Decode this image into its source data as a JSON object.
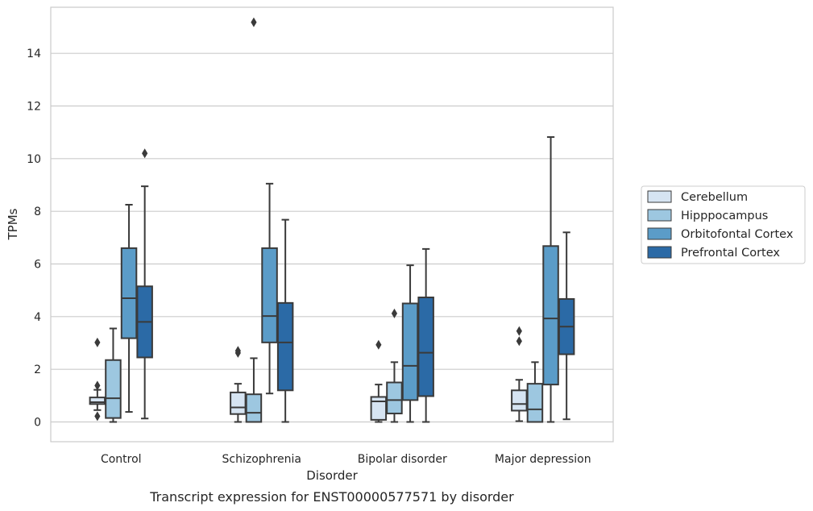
{
  "caption": "Transcript expression for ENST00000577571 by disorder",
  "chart_data": {
    "type": "box",
    "xlabel": "Disorder",
    "ylabel": "TPMs",
    "ylim": [
      -0.75,
      15.75
    ],
    "yticks": [
      0,
      2,
      4,
      6,
      8,
      10,
      12,
      14
    ],
    "grid": "horizontal",
    "legend_position": "right",
    "categories": [
      "Control",
      "Schizophrenia",
      "Bipolar disorder",
      "Major depression"
    ],
    "series": [
      {
        "name": "Cerebellum",
        "color": "#d6e4f2",
        "boxes": [
          {
            "whislo": 0.45,
            "q1": 0.68,
            "med": 0.75,
            "q3": 0.93,
            "whishi": 1.22,
            "fliers": [
              0.22,
              1.38,
              3.02
            ]
          },
          {
            "whislo": 0.0,
            "q1": 0.3,
            "med": 0.55,
            "q3": 1.12,
            "whishi": 1.45,
            "fliers": [
              2.62,
              2.7
            ]
          },
          {
            "whislo": 0.0,
            "q1": 0.08,
            "med": 0.78,
            "q3": 0.95,
            "whishi": 1.42,
            "fliers": [
              2.93
            ]
          },
          {
            "whislo": 0.03,
            "q1": 0.43,
            "med": 0.68,
            "q3": 1.2,
            "whishi": 1.6,
            "fliers": [
              3.07,
              3.45
            ]
          }
        ]
      },
      {
        "name": "Hipppocampus",
        "color": "#9dc7e0",
        "boxes": [
          {
            "whislo": 0.0,
            "q1": 0.15,
            "med": 0.9,
            "q3": 2.35,
            "whishi": 3.55,
            "fliers": []
          },
          {
            "whislo": 0.0,
            "q1": 0.0,
            "med": 0.35,
            "q3": 1.05,
            "whishi": 2.42,
            "fliers": [
              15.18
            ]
          },
          {
            "whislo": 0.0,
            "q1": 0.32,
            "med": 0.83,
            "q3": 1.5,
            "whishi": 2.27,
            "fliers": [
              4.12
            ]
          },
          {
            "whislo": 0.0,
            "q1": 0.0,
            "med": 0.48,
            "q3": 1.45,
            "whishi": 2.27,
            "fliers": []
          }
        ]
      },
      {
        "name": "Orbitofontal Cortex",
        "color": "#5b9cc8",
        "boxes": [
          {
            "whislo": 0.38,
            "q1": 3.18,
            "med": 4.7,
            "q3": 6.6,
            "whishi": 8.25,
            "fliers": []
          },
          {
            "whislo": 1.08,
            "q1": 3.02,
            "med": 4.02,
            "q3": 6.6,
            "whishi": 9.05,
            "fliers": []
          },
          {
            "whislo": 0.0,
            "q1": 0.83,
            "med": 2.13,
            "q3": 4.5,
            "whishi": 5.95,
            "fliers": []
          },
          {
            "whislo": 0.0,
            "q1": 1.42,
            "med": 3.93,
            "q3": 6.68,
            "whishi": 10.82,
            "fliers": []
          }
        ]
      },
      {
        "name": "Prefrontal Cortex",
        "color": "#2b6aa6",
        "boxes": [
          {
            "whislo": 0.13,
            "q1": 2.45,
            "med": 3.8,
            "q3": 5.15,
            "whishi": 8.95,
            "fliers": [
              10.2
            ]
          },
          {
            "whislo": 0.0,
            "q1": 1.2,
            "med": 3.02,
            "q3": 4.52,
            "whishi": 7.68,
            "fliers": []
          },
          {
            "whislo": 0.0,
            "q1": 0.98,
            "med": 2.63,
            "q3": 4.73,
            "whishi": 6.57,
            "fliers": []
          },
          {
            "whislo": 0.1,
            "q1": 2.57,
            "med": 3.62,
            "q3": 4.67,
            "whishi": 7.2,
            "fliers": []
          }
        ]
      }
    ]
  }
}
